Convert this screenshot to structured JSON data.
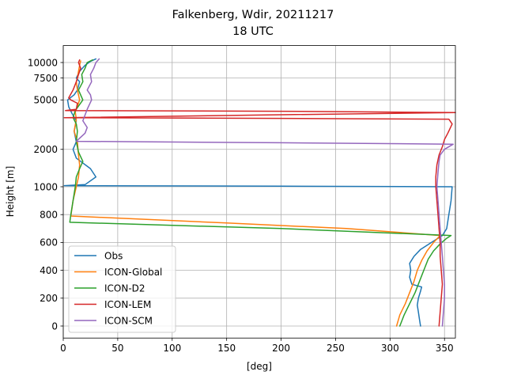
{
  "figure": {
    "title_line1": "Falkenberg, Wdir, 20211217",
    "title_line2": "18 UTC"
  },
  "chart_data": {
    "type": "line",
    "title": "Falkenberg, Wdir, 20211217 18 UTC",
    "xlabel": "[deg]",
    "ylabel": "Height [m]",
    "xlim": [
      0,
      360
    ],
    "x_ticks": [
      0,
      50,
      100,
      150,
      200,
      250,
      300,
      350
    ],
    "y_ticks": [
      0,
      200,
      400,
      600,
      800,
      1000,
      2000,
      5000,
      7500,
      10000
    ],
    "y_tick_labels": [
      "0",
      "200",
      "400",
      "600",
      "800",
      "1000",
      "2000",
      "5000",
      "7500",
      "10000"
    ],
    "y_scale": "piecewise: linear 0-1000 m, logarithmic 1000-10000 m",
    "grid": true,
    "legend_position": "lower-left",
    "series": [
      {
        "name": "Obs",
        "color": "#1f77b4",
        "points": [
          [
            328,
            0
          ],
          [
            327,
            50
          ],
          [
            326,
            100
          ],
          [
            325,
            150
          ],
          [
            326,
            200
          ],
          [
            328,
            250
          ],
          [
            329,
            280
          ],
          [
            320,
            300
          ],
          [
            318,
            350
          ],
          [
            319,
            400
          ],
          [
            318,
            450
          ],
          [
            322,
            500
          ],
          [
            328,
            550
          ],
          [
            338,
            600
          ],
          [
            348,
            650
          ],
          [
            352,
            700
          ],
          [
            354,
            800
          ],
          [
            356,
            900
          ],
          [
            357,
            1000
          ],
          [
            200,
            1010
          ],
          [
            1,
            1020
          ],
          [
            20,
            1040
          ],
          [
            30,
            1200
          ],
          [
            25,
            1400
          ],
          [
            12,
            1700
          ],
          [
            9,
            2000
          ],
          [
            12,
            2300
          ],
          [
            10,
            2800
          ],
          [
            12,
            3400
          ],
          [
            8,
            3900
          ],
          [
            5,
            4400
          ],
          [
            4,
            5000
          ],
          [
            10,
            5500
          ],
          [
            13,
            6000
          ],
          [
            15,
            7000
          ],
          [
            12,
            7500
          ],
          [
            15,
            8500
          ],
          [
            20,
            9500
          ],
          [
            25,
            10200
          ],
          [
            30,
            10700
          ]
        ]
      },
      {
        "name": "ICON-Global",
        "color": "#ff7f0e",
        "points": [
          [
            306,
            0
          ],
          [
            309,
            80
          ],
          [
            314,
            160
          ],
          [
            318,
            240
          ],
          [
            322,
            320
          ],
          [
            325,
            400
          ],
          [
            329,
            470
          ],
          [
            334,
            540
          ],
          [
            340,
            600
          ],
          [
            346,
            650
          ],
          [
            260,
            700
          ],
          [
            150,
            740
          ],
          [
            7,
            790
          ],
          [
            9,
            900
          ],
          [
            12,
            1000
          ],
          [
            14,
            1200
          ],
          [
            15,
            1500
          ],
          [
            14,
            1800
          ],
          [
            13,
            2300
          ],
          [
            10,
            2800
          ],
          [
            12,
            3500
          ],
          [
            11,
            4000
          ],
          [
            15,
            5000
          ],
          [
            13,
            6000
          ],
          [
            12,
            7000
          ],
          [
            13,
            7500
          ],
          [
            14,
            8500
          ],
          [
            15,
            9500
          ],
          [
            16,
            10300
          ]
        ]
      },
      {
        "name": "ICON-D2",
        "color": "#2ca02c",
        "points": [
          [
            309,
            0
          ],
          [
            313,
            80
          ],
          [
            318,
            160
          ],
          [
            323,
            240
          ],
          [
            327,
            320
          ],
          [
            331,
            400
          ],
          [
            335,
            480
          ],
          [
            340,
            540
          ],
          [
            346,
            590
          ],
          [
            352,
            630
          ],
          [
            356,
            650
          ],
          [
            200,
            700
          ],
          [
            6,
            745
          ],
          [
            7,
            800
          ],
          [
            9,
            900
          ],
          [
            11,
            1000
          ],
          [
            12,
            1200
          ],
          [
            15,
            1400
          ],
          [
            18,
            1600
          ],
          [
            14,
            1900
          ],
          [
            12,
            2300
          ],
          [
            13,
            2800
          ],
          [
            12,
            3200
          ],
          [
            9,
            3600
          ],
          [
            11,
            4100
          ],
          [
            18,
            5000
          ],
          [
            14,
            6000
          ],
          [
            18,
            7000
          ],
          [
            17,
            8000
          ],
          [
            20,
            9000
          ],
          [
            22,
            10000
          ],
          [
            27,
            10500
          ]
        ]
      },
      {
        "name": "ICON-LEM",
        "color": "#d62728",
        "points": [
          [
            345,
            0
          ],
          [
            346,
            100
          ],
          [
            347,
            200
          ],
          [
            348,
            300
          ],
          [
            347,
            400
          ],
          [
            346,
            500
          ],
          [
            346,
            600
          ],
          [
            345,
            700
          ],
          [
            344,
            800
          ],
          [
            343,
            900
          ],
          [
            342,
            1000
          ],
          [
            342,
            1200
          ],
          [
            343,
            1500
          ],
          [
            345,
            1800
          ],
          [
            348,
            2100
          ],
          [
            350,
            2400
          ],
          [
            353,
            2700
          ],
          [
            357,
            3200
          ],
          [
            354,
            3500
          ],
          [
            200,
            3550
          ],
          [
            1,
            3600
          ],
          [
            200,
            3800
          ],
          [
            360,
            3950
          ],
          [
            200,
            4050
          ],
          [
            2,
            4100
          ],
          [
            12,
            4200
          ],
          [
            13,
            4700
          ],
          [
            7,
            5000
          ],
          [
            5,
            5200
          ],
          [
            9,
            6000
          ],
          [
            12,
            7000
          ],
          [
            14,
            8000
          ],
          [
            16,
            9000
          ],
          [
            14,
            10000
          ],
          [
            15,
            10500
          ]
        ]
      },
      {
        "name": "ICON-SCM",
        "color": "#9467bd",
        "points": [
          [
            348,
            0
          ],
          [
            349,
            100
          ],
          [
            350,
            200
          ],
          [
            350,
            300
          ],
          [
            349,
            400
          ],
          [
            348,
            500
          ],
          [
            347,
            600
          ],
          [
            346,
            700
          ],
          [
            345,
            800
          ],
          [
            344,
            900
          ],
          [
            343,
            1000
          ],
          [
            344,
            1300
          ],
          [
            345,
            1600
          ],
          [
            346,
            1800
          ],
          [
            350,
            2000
          ],
          [
            358,
            2200
          ],
          [
            200,
            2260
          ],
          [
            12,
            2320
          ],
          [
            20,
            2700
          ],
          [
            22,
            3000
          ],
          [
            18,
            3400
          ],
          [
            22,
            4200
          ],
          [
            26,
            5000
          ],
          [
            25,
            5500
          ],
          [
            22,
            6000
          ],
          [
            26,
            7000
          ],
          [
            25,
            8000
          ],
          [
            28,
            9000
          ],
          [
            30,
            10000
          ],
          [
            33,
            10700
          ]
        ]
      }
    ]
  }
}
